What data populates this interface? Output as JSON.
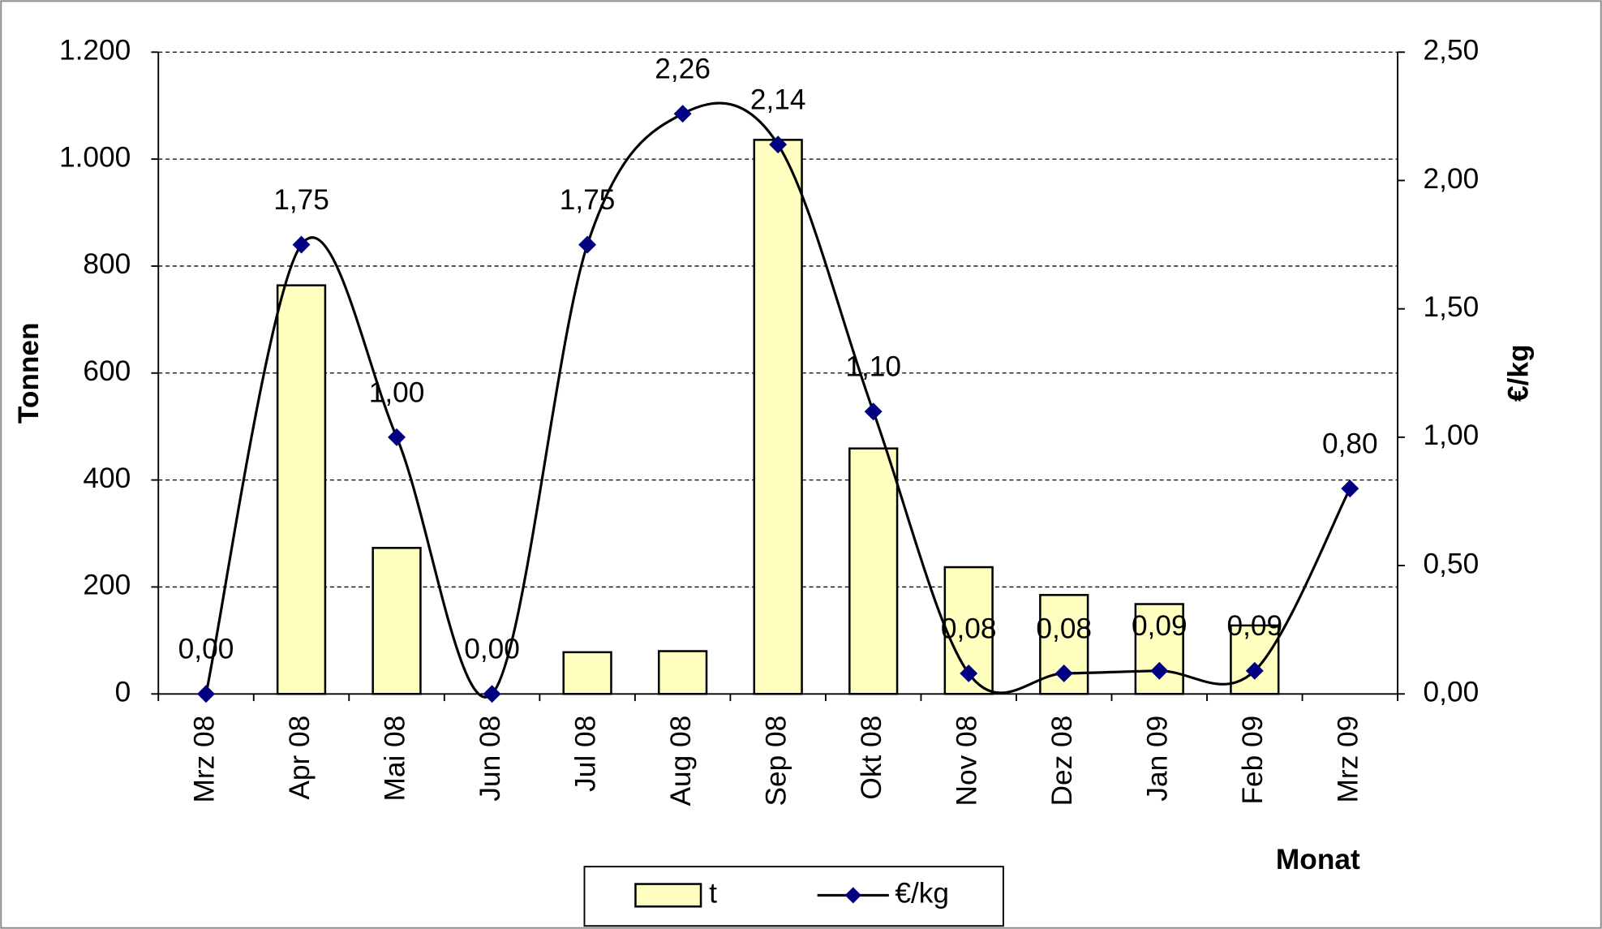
{
  "chart_data": {
    "type": "bar_line",
    "x_label": "Monat",
    "y_label": "Tonnen",
    "y2_label": "€/kg",
    "categories": [
      "Mrz 08",
      "Apr 08",
      "Mai 08",
      "Jun 08",
      "Jul 08",
      "Aug 08",
      "Sep 08",
      "Okt 08",
      "Nov 08",
      "Dez 08",
      "Jan 09",
      "Feb 09",
      "Mrz 09"
    ],
    "series": [
      {
        "name": "t",
        "type": "bar",
        "color": "#ffffc0",
        "values": [
          0,
          764,
          273,
          0,
          78,
          80,
          1036,
          459,
          237,
          185,
          168,
          128,
          0
        ]
      },
      {
        "name": "€/kg",
        "type": "line",
        "axis": "y2",
        "color": "#000000",
        "marker_color": "#000080",
        "values": [
          0,
          1.75,
          1.0,
          0,
          1.75,
          2.26,
          2.14,
          1.1,
          0.08,
          0.08,
          0.09,
          0.09,
          0.8
        ],
        "value_labels": [
          "0,00",
          "1,75",
          "1,00",
          "0,00",
          "1,75",
          "2,26",
          "2,14",
          "1,10",
          "0,08",
          "0,08",
          "0,09",
          "0,09",
          "0,80"
        ]
      }
    ],
    "ylim": [
      0,
      1200
    ],
    "yticks": [
      0,
      200,
      400,
      600,
      800,
      {
        "value": 1000,
        "label": "1.000"
      },
      {
        "value": 1200,
        "label": "1.200"
      }
    ],
    "y2lim": [
      0,
      2.5
    ],
    "y2ticks": [
      {
        "value": 0,
        "label": "0,00"
      },
      {
        "value": 0.5,
        "label": "0,50"
      },
      {
        "value": 1,
        "label": "1,00"
      },
      {
        "value": 1.5,
        "label": "1,50"
      },
      {
        "value": 2,
        "label": "2,00"
      },
      {
        "value": 2.5,
        "label": "2,50"
      }
    ],
    "grid": true
  }
}
